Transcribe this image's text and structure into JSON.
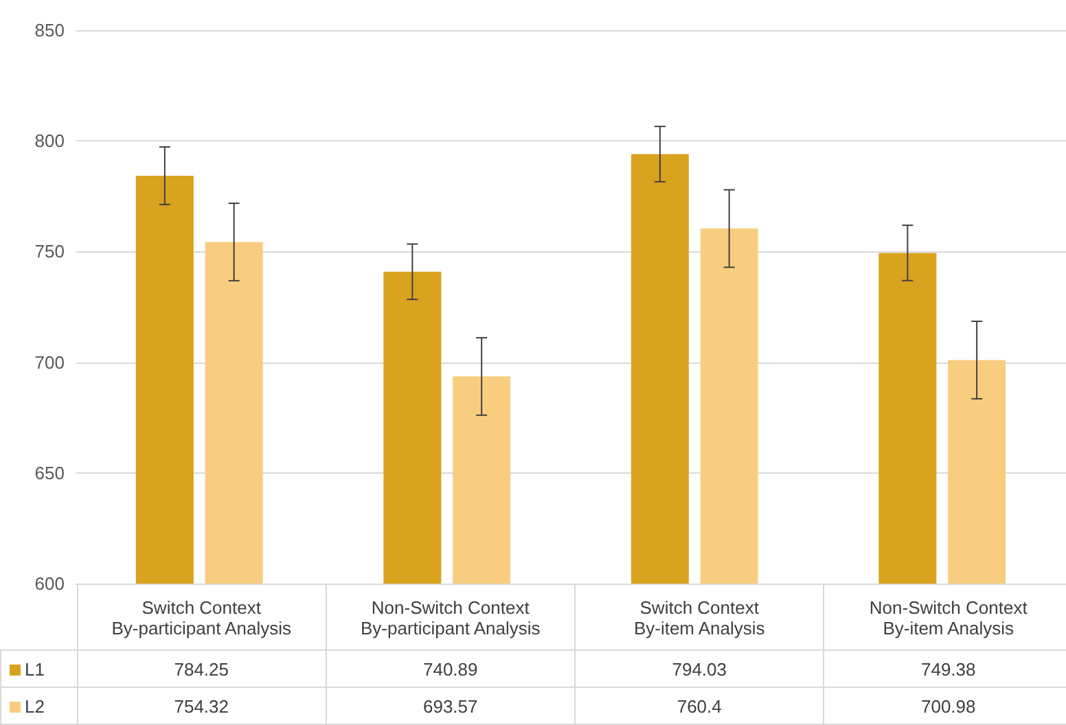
{
  "chart_data": {
    "type": "bar",
    "categories": [
      "Switch Context\nBy-participant Analysis",
      "Non-Switch Context\nBy-participant Analysis",
      "Switch Context\nBy-item Analysis",
      "Non-Switch Context\nBy-item Analysis"
    ],
    "series": [
      {
        "name": "L1",
        "color": "#d9a21f",
        "values": [
          784.25,
          740.89,
          794.03,
          749.38
        ],
        "errors": [
          13,
          12.5,
          12.5,
          12.5
        ]
      },
      {
        "name": "L2",
        "color": "#f9cd80",
        "values": [
          754.32,
          693.57,
          760.4,
          700.98
        ],
        "errors": [
          17.5,
          17.5,
          17.5,
          17.5
        ]
      }
    ],
    "ylim": [
      600,
      850
    ],
    "yticks": [
      600,
      650,
      700,
      750,
      800,
      850
    ],
    "grid": "y",
    "legend": "bottom",
    "data_labels": true
  }
}
